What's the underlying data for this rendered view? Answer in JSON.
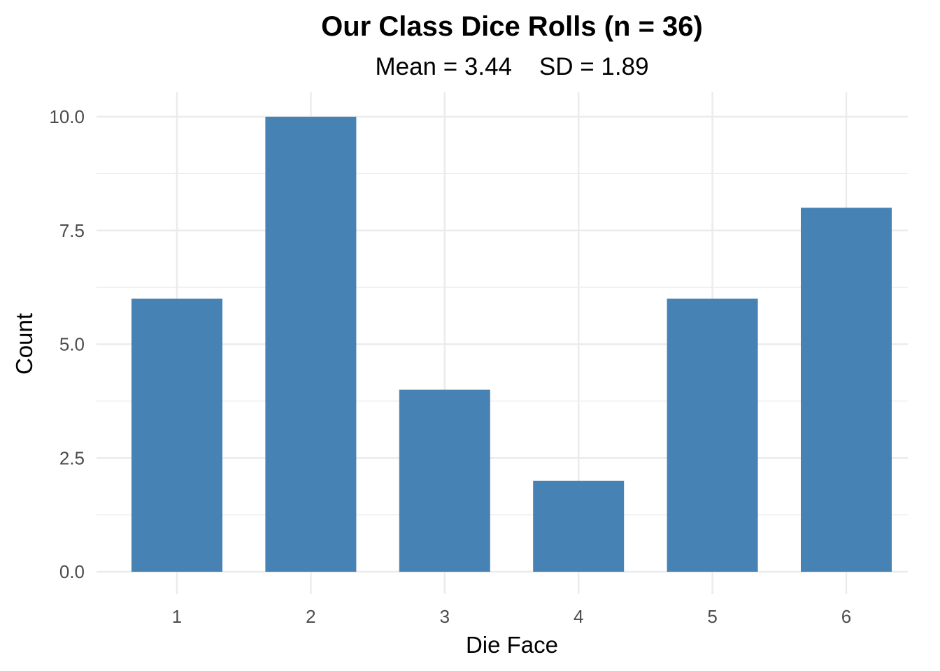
{
  "chart_data": {
    "type": "bar",
    "title": "Our Class Dice Rolls (n = 36)",
    "subtitle": "Mean = 3.44    SD = 1.89",
    "xlabel": "Die Face",
    "ylabel": "Count",
    "categories": [
      "1",
      "2",
      "3",
      "4",
      "5",
      "6"
    ],
    "values": [
      6,
      10,
      4,
      2,
      6,
      8
    ],
    "ylim": [
      0,
      10
    ],
    "y_ticks": [
      0,
      2.5,
      5,
      7.5,
      10
    ],
    "y_tick_labels": [
      "0.0",
      "2.5",
      "5.0",
      "7.5",
      "10.0"
    ],
    "grid": true,
    "bar_color": "#4682B4",
    "grid_color": "#EBEBEB",
    "legend": "none"
  }
}
